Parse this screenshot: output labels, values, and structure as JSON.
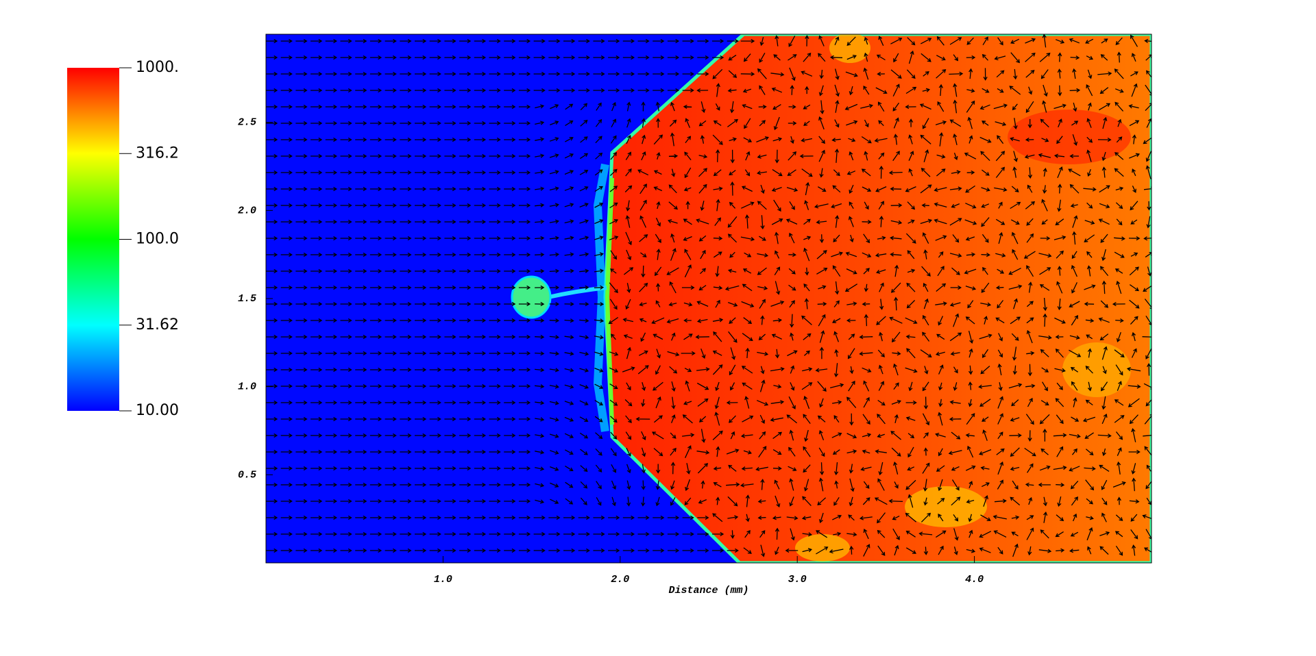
{
  "chart_data": {
    "type": "heatmap",
    "x_label": "Distance (mm)",
    "xlim": [
      0,
      5
    ],
    "ylim": [
      0,
      3
    ],
    "xticks": [
      {
        "value": 1,
        "label": "1.0"
      },
      {
        "value": 2,
        "label": "2.0"
      },
      {
        "value": 3,
        "label": "3.0"
      },
      {
        "value": 4,
        "label": "4.0"
      }
    ],
    "yticks": [
      0.5,
      {
        "value": 1,
        "label": "1.0"
      },
      1.5,
      {
        "value": 2,
        "label": "2.0"
      },
      2.5
    ],
    "colorbar": {
      "scale": "log",
      "lim": [
        10,
        1000
      ],
      "ticks": [
        {
          "value": 1000,
          "label": "1000."
        },
        316.2,
        {
          "value": 100,
          "label": "100.0"
        },
        31.62,
        {
          "value": 10,
          "label": "10.00"
        }
      ]
    }
  }
}
